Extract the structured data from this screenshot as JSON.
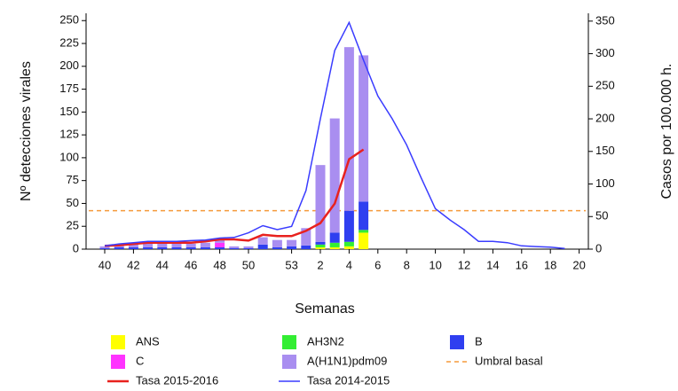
{
  "chart_data": {
    "type": "bar",
    "x_label": "Semanas",
    "y_label": "Nº detecciones virales",
    "y2_label": "Casos por 100.000 h.",
    "categories": [
      "40",
      null,
      "42",
      null,
      "44",
      null,
      "46",
      null,
      "48",
      null,
      "50",
      null,
      null,
      "53",
      null,
      "2",
      null,
      "4",
      null,
      "6",
      null,
      "8",
      null,
      "10",
      null,
      "12",
      null,
      "14",
      null,
      "16",
      null,
      "18",
      null,
      "20"
    ],
    "ylim": [
      0,
      258
    ],
    "yticks": [
      0,
      25,
      50,
      75,
      100,
      125,
      150,
      175,
      200,
      225,
      250
    ],
    "y2lim": [
      0,
      362
    ],
    "y2ticks": [
      0,
      50,
      100,
      150,
      200,
      250,
      300,
      350
    ],
    "stacked": true,
    "series": [
      {
        "name": "ANS",
        "type": "bar",
        "color": "#ffff00",
        "values": [
          0,
          0,
          0,
          0,
          0,
          0,
          0,
          0,
          0,
          0,
          0,
          0,
          0,
          0,
          0,
          2,
          2,
          3,
          18,
          null,
          null,
          null,
          null,
          null,
          null,
          null,
          null,
          null,
          null,
          null,
          null,
          null,
          null,
          null
        ]
      },
      {
        "name": "AH3N2",
        "type": "bar",
        "color": "#33ee33",
        "values": [
          0,
          0,
          0,
          0,
          0,
          0,
          0,
          0,
          0,
          0,
          0,
          0,
          0,
          0,
          0,
          3,
          5,
          5,
          3,
          null,
          null,
          null,
          null,
          null,
          null,
          null,
          null,
          null,
          null,
          null,
          null,
          null,
          null,
          null
        ]
      },
      {
        "name": "B",
        "type": "bar",
        "color": "#2f3ff0",
        "values": [
          1,
          2,
          2,
          2,
          2,
          2,
          2,
          2,
          2,
          1,
          1,
          5,
          2,
          3,
          4,
          3,
          11,
          34,
          31,
          null,
          null,
          null,
          null,
          null,
          null,
          null,
          null,
          null,
          null,
          null,
          null,
          null,
          null,
          null
        ]
      },
      {
        "name": "C",
        "type": "bar",
        "color": "#ff33ff",
        "values": [
          0,
          0,
          0,
          0,
          0,
          0,
          0,
          0,
          5,
          0,
          0,
          0,
          0,
          0,
          0,
          0,
          0,
          0,
          0,
          null,
          null,
          null,
          null,
          null,
          null,
          null,
          null,
          null,
          null,
          null,
          null,
          null,
          null,
          null
        ]
      },
      {
        "name": "A(H1N1)pdm09",
        "type": "bar",
        "color": "#a98ef0",
        "values": [
          2,
          3,
          4,
          5,
          4,
          4,
          4,
          5,
          3,
          2,
          2,
          8,
          8,
          7,
          19,
          84,
          125,
          179,
          160,
          null,
          null,
          null,
          null,
          null,
          null,
          null,
          null,
          null,
          null,
          null,
          null,
          null,
          null,
          null
        ]
      },
      {
        "name": "Tasa 2015-2016",
        "type": "line",
        "axis": "y2",
        "color": "#e8211e",
        "values": [
          5,
          6,
          8,
          10,
          10,
          10,
          10,
          12,
          15,
          15,
          13,
          22,
          20,
          20,
          28,
          40,
          70,
          138,
          153,
          null,
          null,
          null,
          null,
          null,
          null,
          null,
          null,
          null,
          null,
          null,
          null,
          null,
          null,
          null
        ]
      },
      {
        "name": "Tasa 2014-2015",
        "type": "line",
        "axis": "y2",
        "color": "#3a3cff",
        "values": [
          5,
          8,
          10,
          12,
          12,
          12,
          13,
          14,
          17,
          18,
          25,
          36,
          30,
          35,
          90,
          200,
          305,
          348,
          290,
          235,
          200,
          160,
          110,
          62,
          45,
          30,
          12,
          12,
          10,
          5,
          4,
          3,
          1,
          null
        ]
      }
    ],
    "threshold": {
      "name": "Umbral basal",
      "value": 59,
      "axis": "y2",
      "color": "#f59a3c"
    }
  }
}
